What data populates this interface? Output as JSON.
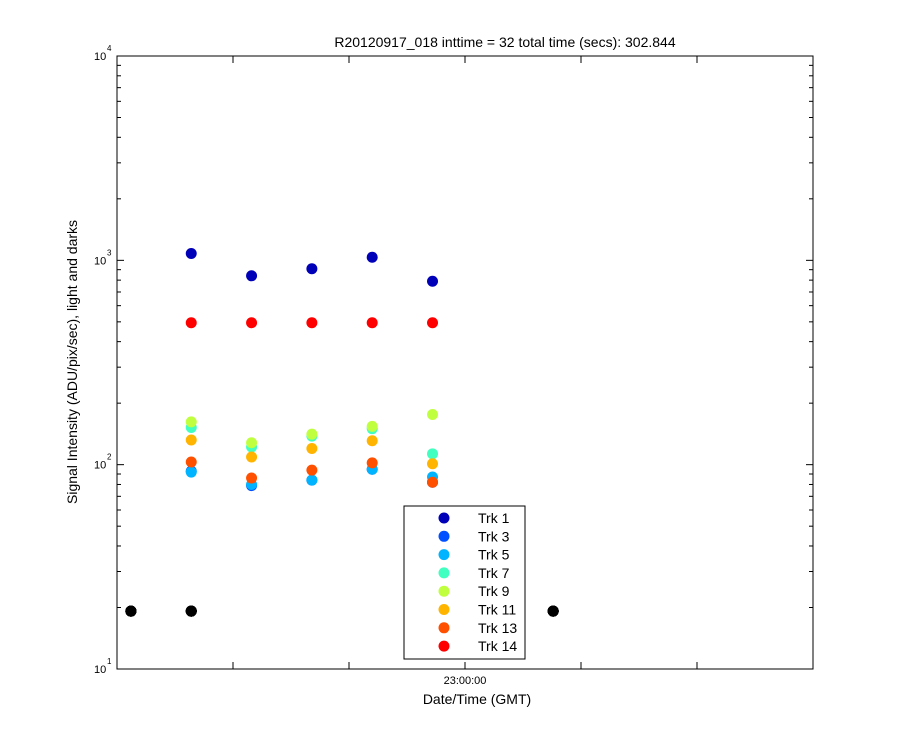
{
  "chart_data": {
    "type": "scatter",
    "title": "R20120917_018 inttime = 32 total time (secs): 302.844",
    "xlabel": "Date/Time (GMT)",
    "ylabel": "Signal Intensity (ADU/pix/sec), light and darks",
    "yscale": "log",
    "ylim": [
      10,
      10000
    ],
    "y_ticks": [
      {
        "base": "10",
        "exp": "1",
        "value": 10
      },
      {
        "base": "10",
        "exp": "2",
        "value": 100
      },
      {
        "base": "10",
        "exp": "3",
        "value": 1000
      },
      {
        "base": "10",
        "exp": "4",
        "value": 10000
      }
    ],
    "x_tick_label": "23:00:00",
    "xlim_minutes_from_tick": [
      -15,
      15
    ],
    "x_tick_minutes": [
      -10,
      -5,
      0,
      5,
      10
    ],
    "grid": false,
    "legend_position": "bottom-center",
    "series": [
      {
        "name": "Trk 1",
        "color": "#0000b8",
        "x": [
          -11.8,
          -9.2,
          -6.6,
          -4.0,
          -1.4
        ],
        "values": [
          1080,
          840,
          910,
          1035,
          790
        ]
      },
      {
        "name": "Trk 3",
        "color": "#0050ff",
        "x": [
          -11.8,
          -9.2,
          -6.6,
          -4.0,
          -1.4
        ],
        "values": [
          93,
          79,
          84,
          95,
          82
        ]
      },
      {
        "name": "Trk 5",
        "color": "#00b4ff",
        "x": [
          -11.8,
          -9.2,
          -6.6,
          -4.0,
          -1.4
        ],
        "values": [
          92,
          80,
          84,
          95,
          87
        ]
      },
      {
        "name": "Trk 7",
        "color": "#40ffc0",
        "x": [
          -11.8,
          -9.2,
          -6.6,
          -4.0,
          -1.4
        ],
        "values": [
          152,
          122,
          138,
          150,
          113
        ]
      },
      {
        "name": "Trk 9",
        "color": "#c0ff40",
        "x": [
          -11.8,
          -9.2,
          -6.6,
          -4.0,
          -1.4
        ],
        "values": [
          162,
          128,
          141,
          154,
          176
        ]
      },
      {
        "name": "Trk 11",
        "color": "#ffb400",
        "x": [
          -11.8,
          -9.2,
          -6.6,
          -4.0,
          -1.4
        ],
        "values": [
          132,
          109,
          120,
          131,
          101
        ]
      },
      {
        "name": "Trk 13",
        "color": "#ff5000",
        "x": [
          -11.8,
          -9.2,
          -6.6,
          -4.0,
          -1.4
        ],
        "values": [
          103,
          86,
          94,
          102,
          82
        ]
      },
      {
        "name": "Trk 14",
        "color": "#ff0000",
        "x": [
          -11.8,
          -9.2,
          -6.6,
          -4.0,
          -1.4
        ],
        "values": [
          495,
          495,
          495,
          495,
          495
        ]
      },
      {
        "color": "#000000",
        "x": [
          -14.4,
          -14.4,
          -14.4,
          -14.4,
          -14.4,
          -14.4,
          -14.4,
          -14.4
        ],
        "values": [
          19.2,
          19.2,
          19.2,
          19.2,
          19.2,
          19.2,
          19.2,
          19.2
        ]
      },
      {
        "color": "#000000",
        "x": [
          -11.8,
          -11.8,
          -11.8,
          -11.8,
          -11.8,
          -11.8,
          -11.8,
          -11.8
        ],
        "values": [
          19.2,
          19.2,
          19.2,
          19.2,
          19.2,
          19.2,
          19.2,
          19.2
        ]
      },
      {
        "color": "#000000",
        "x": [
          1.2,
          1.2,
          1.2,
          1.2,
          1.2,
          1.2,
          1.2,
          1.2
        ],
        "values": [
          19.2,
          19.2,
          19.2,
          19.2,
          19.2,
          19.2,
          19.2,
          19.2
        ]
      },
      {
        "color": "#000000",
        "x": [
          3.8,
          3.8,
          3.8,
          3.8,
          3.8,
          3.8,
          3.8,
          3.8
        ],
        "values": [
          19.2,
          19.2,
          19.2,
          19.2,
          19.2,
          19.2,
          19.2,
          19.2
        ]
      }
    ]
  }
}
